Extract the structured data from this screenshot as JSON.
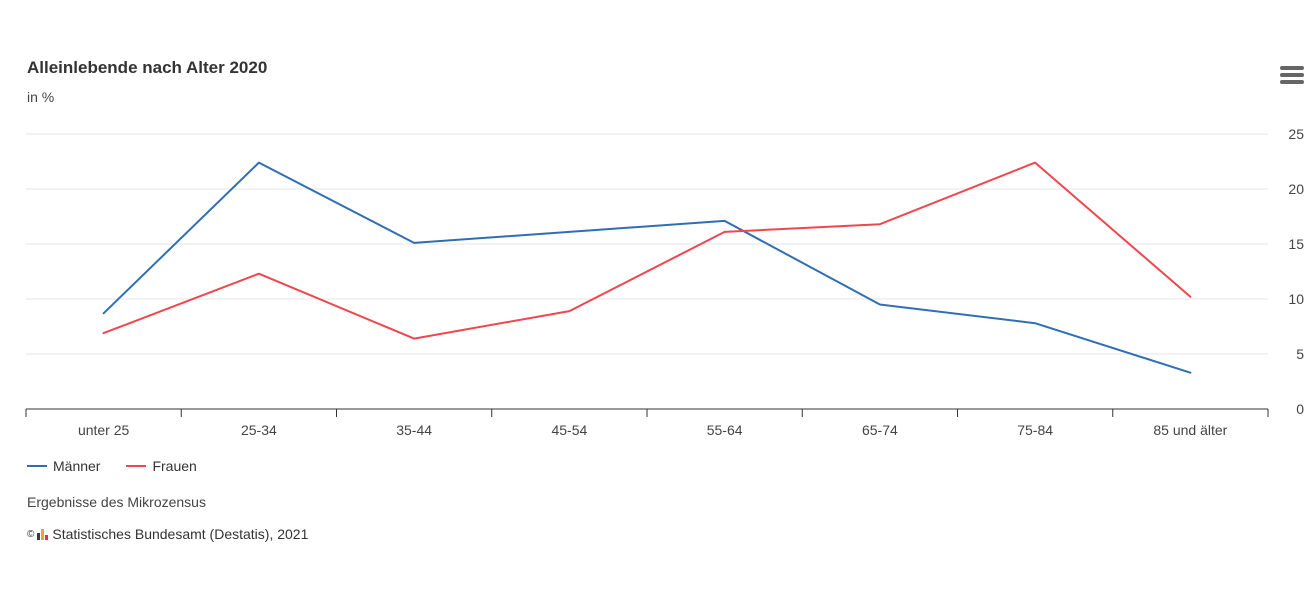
{
  "header": {
    "title": "Alleinlebende nach Alter 2020",
    "subtitle": "in %",
    "menu_icon": "hamburger-menu-icon"
  },
  "colors": {
    "maenner": "#2f6eb5",
    "frauen": "#f0464e",
    "grid": "#e6e6e6",
    "axis": "#333333"
  },
  "chart_data": {
    "type": "line",
    "categories": [
      "unter 25",
      "25-34",
      "35-44",
      "45-54",
      "55-64",
      "65-74",
      "75-84",
      "85 und älter"
    ],
    "series": [
      {
        "name": "Männer",
        "values": [
          8.7,
          22.4,
          15.1,
          16.1,
          17.1,
          9.5,
          7.8,
          3.3
        ]
      },
      {
        "name": "Frauen",
        "values": [
          6.9,
          12.3,
          6.4,
          8.9,
          16.1,
          16.8,
          22.4,
          10.2
        ]
      }
    ],
    "ylim": [
      0,
      25
    ],
    "yticks": [
      "0",
      "5",
      "10",
      "15",
      "20",
      "25"
    ],
    "y_axis_side": "right",
    "grid": true,
    "legend_position": "bottom-left"
  },
  "legend": {
    "items": [
      {
        "label": "Männer"
      },
      {
        "label": "Frauen"
      }
    ]
  },
  "footer": {
    "note": "Ergebnisse des Mikrozensus",
    "copyright_symbol": "©",
    "credit": "Statistisches Bundesamt (Destatis), 2021",
    "logo_icon": "destatis-logo-icon"
  }
}
